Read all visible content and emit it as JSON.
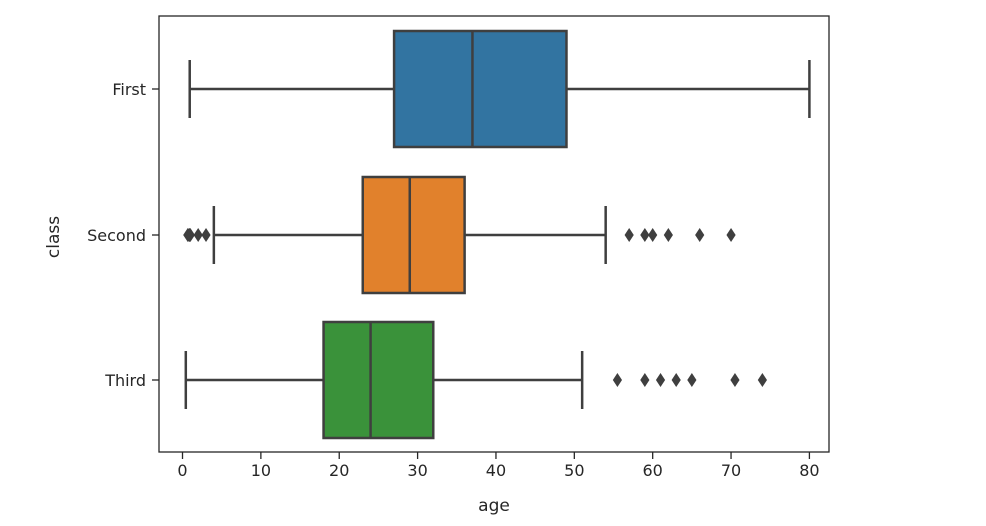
{
  "chart_data": {
    "type": "boxplot",
    "orientation": "horizontal",
    "title": "",
    "xlabel": "age",
    "ylabel": "class",
    "xlim": [
      -3,
      82.5
    ],
    "xticks": [
      0,
      10,
      20,
      30,
      40,
      50,
      60,
      70,
      80
    ],
    "xtick_labels": [
      "0",
      "10",
      "20",
      "30",
      "40",
      "50",
      "60",
      "70",
      "80"
    ],
    "grid": false,
    "categories": [
      "First",
      "Second",
      "Third"
    ],
    "boxes": [
      {
        "category": "First",
        "color": "#3274a1",
        "whisker_low": 0.92,
        "q1": 27,
        "median": 37,
        "q3": 49,
        "whisker_high": 80,
        "outliers": []
      },
      {
        "category": "Second",
        "color": "#e1812c",
        "whisker_low": 4,
        "q1": 23,
        "median": 29,
        "q3": 36,
        "whisker_high": 54,
        "outliers": [
          0.67,
          0.83,
          0.92,
          1,
          2,
          3,
          57,
          59,
          60,
          62,
          66,
          70
        ]
      },
      {
        "category": "Third",
        "color": "#3a923a",
        "whisker_low": 0.42,
        "q1": 18,
        "median": 24,
        "q3": 32,
        "whisker_high": 51,
        "outliers": [
          55.5,
          59,
          61,
          63,
          65,
          70.5,
          74
        ]
      }
    ],
    "line_color": "#3f3f3f",
    "frame_color": "#262626"
  }
}
